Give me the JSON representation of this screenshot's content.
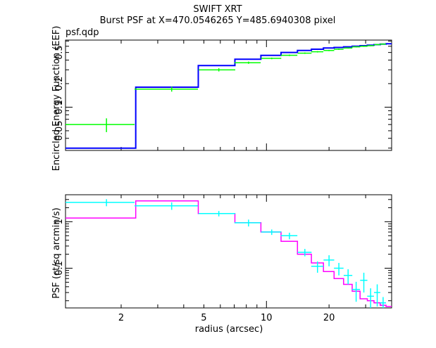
{
  "chart_data": [
    {
      "type": "line",
      "title": "SWIFT XRT",
      "subtitle": "Burst PSF at X=470.0546265 Y=485.6940308 pixel",
      "corner_label": "psf.qdp",
      "xlabel": "",
      "ylabel": "Encircled Energy Function (EEF)",
      "xscale": "log",
      "yscale": "log",
      "xlim": [
        1.08,
        40
      ],
      "ylim": [
        0.028,
        0.72
      ],
      "y_tick_labels": [
        "0.05",
        "0.1",
        "0.2",
        "0.5"
      ],
      "y_tick_values": [
        0.05,
        0.1,
        0.2,
        0.5
      ],
      "series": [
        {
          "color": "#0000ff",
          "style": "step",
          "edges": [
            1.08,
            2.35,
            4.7,
            7.05,
            9.4,
            11.75,
            14.1,
            16.45,
            18.8,
            21.15,
            23.5,
            25.85,
            28.2,
            30.55,
            32.9,
            35.25,
            37.6,
            40
          ],
          "values": [
            0.03,
            0.18,
            0.34,
            0.41,
            0.46,
            0.5,
            0.53,
            0.55,
            0.57,
            0.58,
            0.59,
            0.6,
            0.61,
            0.62,
            0.63,
            0.64,
            0.645
          ]
        },
        {
          "color": "#00ff00",
          "style": "errorbar",
          "x": [
            1.7,
            3.5,
            5.9,
            8.2,
            10.6,
            12.9,
            15.3,
            17.6,
            20.0,
            22.3,
            24.7,
            27.0,
            29.4,
            31.7,
            34.1,
            36.4
          ],
          "xerr": [
            0.62,
            1.18,
            1.18,
            1.18,
            1.18,
            1.18,
            1.18,
            1.18,
            1.18,
            1.18,
            1.18,
            1.18,
            1.18,
            1.18,
            1.18,
            1.18
          ],
          "y": [
            0.06,
            0.17,
            0.3,
            0.37,
            0.42,
            0.46,
            0.49,
            0.51,
            0.53,
            0.55,
            0.57,
            0.59,
            0.6,
            0.61,
            0.63,
            0.64
          ],
          "yerr": [
            0.012,
            0.012,
            0.014,
            0.012,
            0.01,
            0.01,
            0.01,
            0.01,
            0.01,
            0.01,
            0.01,
            0.01,
            0.01,
            0.01,
            0.01,
            0.01
          ]
        }
      ]
    },
    {
      "type": "line",
      "xlabel": "radius (arcsec)",
      "ylabel": "PSF (ct/sq arcmin/s)",
      "xscale": "log",
      "yscale": "log",
      "xlim": [
        1.08,
        40
      ],
      "ylim": [
        0.014,
        3.8
      ],
      "x_tick_labels": [
        "2",
        "5",
        "10",
        "20"
      ],
      "x_tick_values": [
        2,
        5,
        10,
        20
      ],
      "y_tick_labels": [
        "0.1",
        "1"
      ],
      "y_tick_values": [
        0.1,
        1
      ],
      "series": [
        {
          "color": "#ff00ff",
          "style": "step",
          "edges": [
            1.08,
            2.35,
            4.7,
            7.05,
            9.4,
            11.75,
            14.1,
            16.45,
            18.8,
            21.15,
            23.5,
            25.85,
            28.2,
            30.55,
            32.9,
            35.25,
            37.6,
            40
          ],
          "values": [
            1.2,
            2.8,
            1.5,
            0.95,
            0.6,
            0.38,
            0.2,
            0.13,
            0.085,
            0.06,
            0.045,
            0.032,
            0.022,
            0.02,
            0.018,
            0.016,
            0.015
          ]
        },
        {
          "color": "#00ffff",
          "style": "errorbar",
          "x": [
            1.7,
            3.5,
            5.9,
            8.2,
            10.6,
            12.9,
            15.3,
            17.6,
            20.0,
            22.3,
            24.7,
            27.0,
            29.4,
            31.7,
            34.1,
            36.4
          ],
          "xerr": [
            0.62,
            1.18,
            1.18,
            1.18,
            1.18,
            1.18,
            1.18,
            1.18,
            1.18,
            1.18,
            1.18,
            1.18,
            1.18,
            1.18,
            1.18,
            1.18
          ],
          "y": [
            2.6,
            2.2,
            1.5,
            0.95,
            0.6,
            0.5,
            0.22,
            0.11,
            0.15,
            0.1,
            0.07,
            0.035,
            0.055,
            0.025,
            0.03,
            0.018
          ],
          "yerr": [
            0.45,
            0.4,
            0.2,
            0.16,
            0.08,
            0.08,
            0.04,
            0.03,
            0.04,
            0.03,
            0.025,
            0.016,
            0.025,
            0.012,
            0.015,
            0.006
          ]
        }
      ]
    }
  ]
}
